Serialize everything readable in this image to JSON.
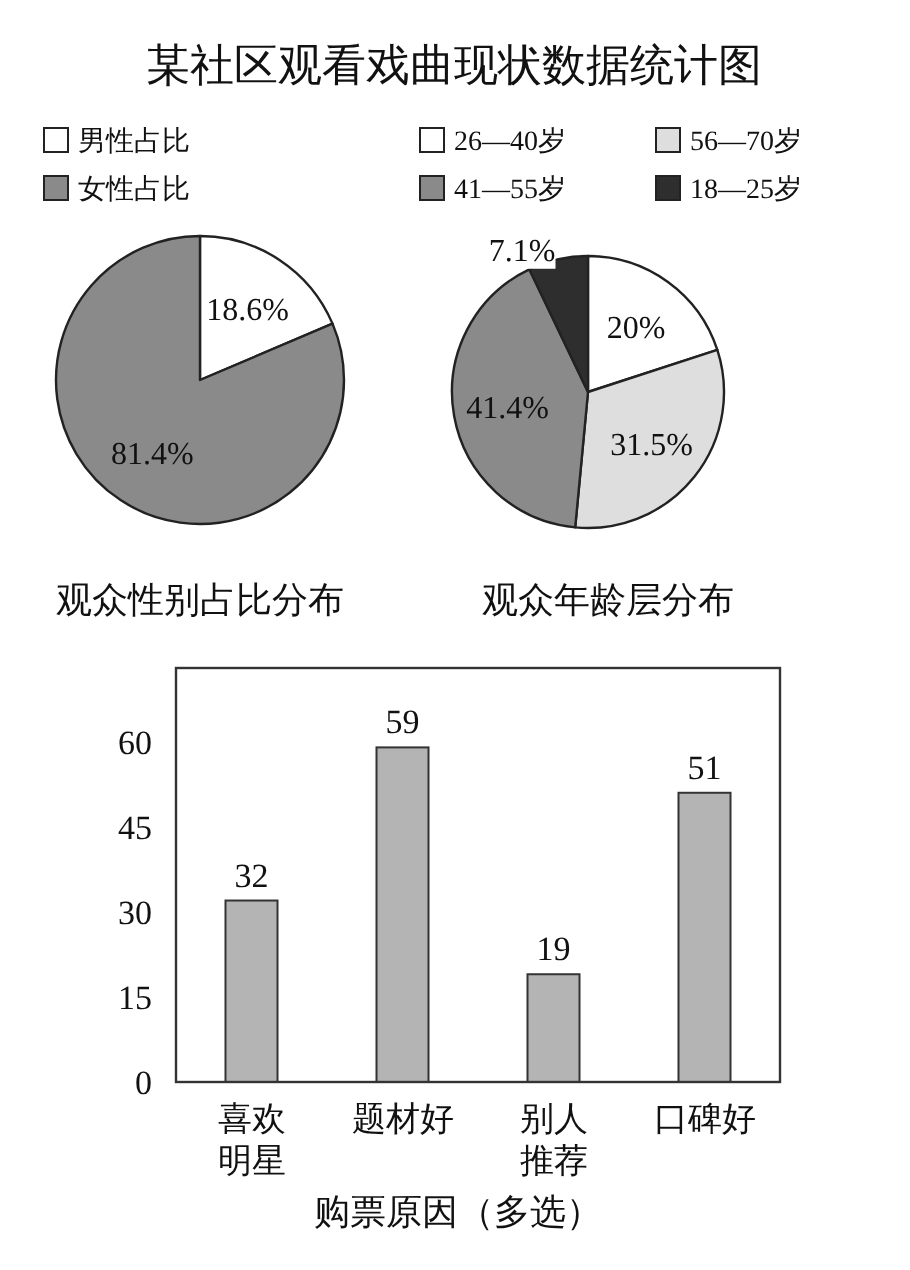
{
  "chart_data": [
    {
      "type": "pie",
      "title": "某社区观看戏曲现状数据统计图",
      "xlabel": "观众性别占比分布",
      "categories": [
        "男性占比",
        "女性占比"
      ],
      "values": [
        18.6,
        81.4
      ],
      "value_labels": [
        "18.6%",
        "81.4%"
      ],
      "colors": [
        "#ffffff",
        "#8a8a8a"
      ],
      "legend": "top"
    },
    {
      "type": "pie",
      "xlabel": "观众年龄层分布",
      "categories": [
        "26—40岁",
        "56—70岁",
        "41—55岁",
        "18—25岁"
      ],
      "values": [
        20,
        31.5,
        41.4,
        7.1
      ],
      "value_labels": [
        "20%",
        "31.5%",
        "41.4%",
        "7.1%"
      ],
      "colors": [
        "#ffffff",
        "#dedede",
        "#8a8a8a",
        "#2e2e2e"
      ],
      "legend": "top"
    },
    {
      "type": "bar",
      "xlabel": "购票原因（多选）",
      "categories": [
        "喜欢明星",
        "题材好",
        "别人推荐",
        "口碑好"
      ],
      "values": [
        32,
        59,
        19,
        51
      ],
      "color": "#b4b4b4",
      "ylim": [
        0,
        73
      ],
      "yticks": [
        0,
        15,
        30,
        45,
        60
      ],
      "data_labels": true,
      "grid": false
    }
  ]
}
